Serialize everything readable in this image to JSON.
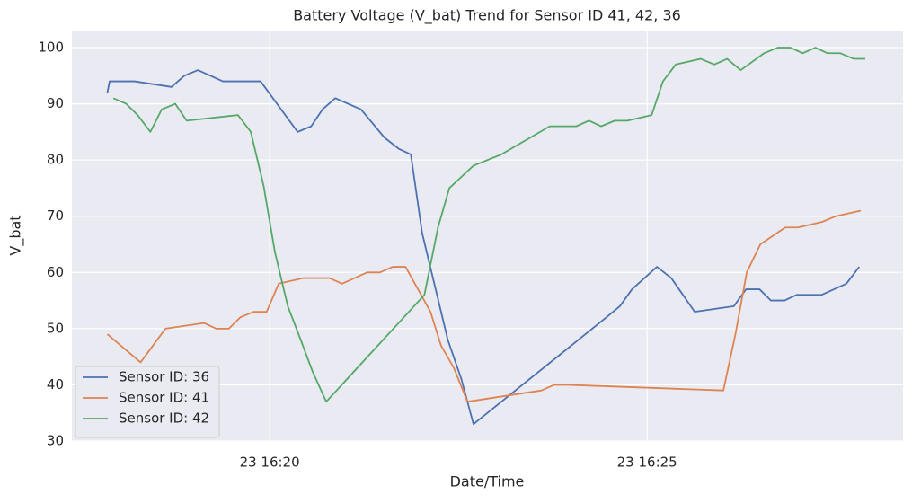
{
  "chart_data": {
    "type": "line",
    "title": "Battery Voltage (V_bat) Trend for Sensor ID 41, 42, 36",
    "x_label": "Date/Time",
    "y_label": "V_bat",
    "xlim": [
      17.38,
      28.39
    ],
    "xticks": [
      {
        "value": 20,
        "label": "23 16:20"
      },
      {
        "value": 25,
        "label": "23 16:25"
      }
    ],
    "ylim": [
      30,
      103.04
    ],
    "yticks": [
      30,
      40,
      50,
      60,
      70,
      80,
      90,
      100
    ],
    "grid": true,
    "legend": "lower left",
    "series": [
      {
        "name": "Sensor ID: 36",
        "color": "#4c72b0",
        "x": [
          17.85,
          17.88,
          18.21,
          18.7,
          18.87,
          19.05,
          19.38,
          19.88,
          20.37,
          20.55,
          20.7,
          20.87,
          21.21,
          21.52,
          21.71,
          21.87,
          22.02,
          22.36,
          22.54,
          22.7,
          24.46,
          24.64,
          24.8,
          25.13,
          25.32,
          25.63,
          26.15,
          26.31,
          26.49,
          26.64,
          26.82,
          26.98,
          27.31,
          27.64,
          27.81
        ],
        "values": [
          92,
          94,
          94,
          93,
          95,
          96,
          94,
          94,
          85,
          86,
          89,
          91,
          89,
          84,
          82,
          81,
          67,
          48,
          41,
          33,
          52,
          54,
          57,
          61,
          59,
          53,
          54,
          57,
          57,
          55,
          55,
          56,
          56,
          58,
          61
        ]
      },
      {
        "name": "Sensor ID: 41",
        "color": "#dd8452",
        "x": [
          17.85,
          18.29,
          18.62,
          19.13,
          19.29,
          19.46,
          19.61,
          19.79,
          19.96,
          20.12,
          20.45,
          20.79,
          20.96,
          21.29,
          21.46,
          21.63,
          21.8,
          22.13,
          22.27,
          22.44,
          22.62,
          23.6,
          23.77,
          23.95,
          26.01,
          26.17,
          26.32,
          26.5,
          26.83,
          27.0,
          27.32,
          27.5,
          27.83
        ],
        "values": [
          49,
          44,
          50,
          51,
          50,
          50,
          52,
          53,
          53,
          58,
          59,
          59,
          58,
          60,
          60,
          61,
          61,
          53,
          47,
          43,
          37,
          39,
          40,
          40,
          39,
          49,
          60,
          65,
          68,
          68,
          69,
          70,
          71
        ]
      },
      {
        "name": "Sensor ID: 42",
        "color": "#55a868",
        "x": [
          17.93,
          18.1,
          18.25,
          18.42,
          18.57,
          18.75,
          18.9,
          19.58,
          19.75,
          19.92,
          20.07,
          20.24,
          20.42,
          20.57,
          20.75,
          22.05,
          22.23,
          22.38,
          22.7,
          23.07,
          23.71,
          24.06,
          24.23,
          24.39,
          24.57,
          24.74,
          25.06,
          25.21,
          25.38,
          25.71,
          25.89,
          26.06,
          26.24,
          26.55,
          26.73,
          26.9,
          27.06,
          27.23,
          27.39,
          27.56,
          27.74,
          27.89
        ],
        "values": [
          91,
          90,
          88,
          85,
          89,
          90,
          87,
          88,
          85,
          75.4,
          63.6,
          54,
          47.7,
          42.3,
          37,
          56,
          68,
          75,
          79,
          81,
          86,
          86,
          87,
          86,
          87,
          87,
          88,
          94,
          97,
          98,
          97,
          98,
          96,
          99,
          100,
          100,
          99,
          100,
          99,
          99,
          98,
          98
        ]
      }
    ]
  }
}
